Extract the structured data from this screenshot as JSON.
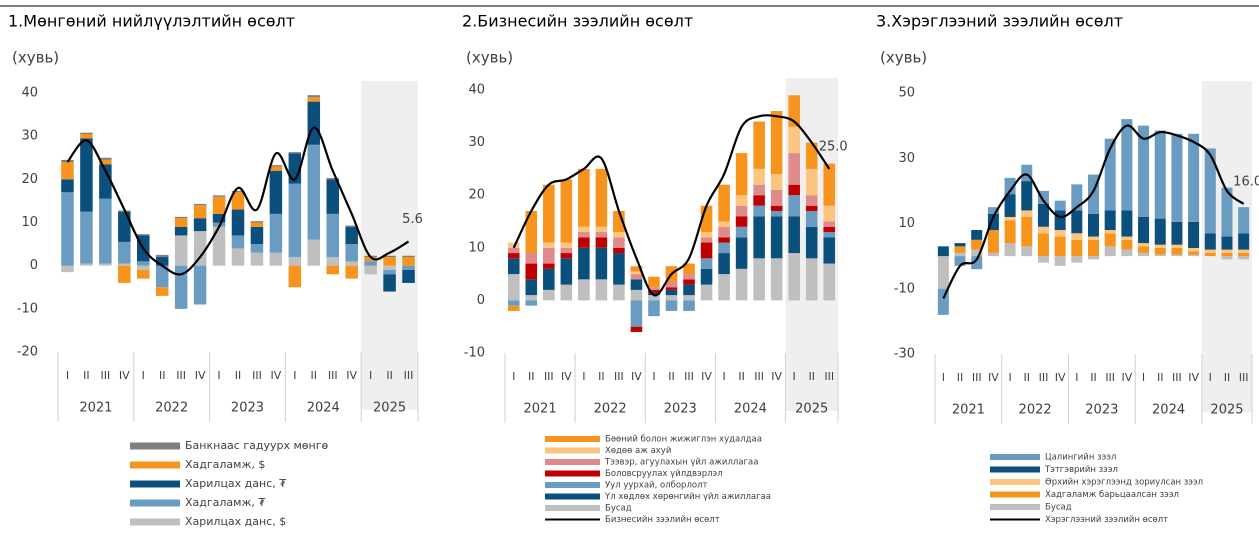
{
  "chart_data": [
    {
      "type": "bar",
      "stacked": true,
      "title": "1.Мөнгөний нийлүүлэлтийн өсөлт",
      "ylabel": "(хувь)",
      "categories": [
        "I",
        "II",
        "III",
        "IV",
        "I",
        "II",
        "III",
        "IV",
        "I",
        "II",
        "III",
        "IV",
        "I",
        "II",
        "III",
        "IV",
        "I",
        "II",
        "III"
      ],
      "years": [
        "2021",
        "2022",
        "2023",
        "2024",
        "2025"
      ],
      "ylim": [
        -20,
        40
      ],
      "yticks": [
        -20,
        -10,
        0,
        10,
        20,
        30,
        40
      ],
      "series": [
        {
          "name": "Банкнаас гадуурх мөнгө",
          "color": "#7f7f7f",
          "values": [
            0.5,
            0.3,
            0.5,
            0.3,
            0.3,
            0.5,
            0.3,
            0.3,
            0.3,
            0.3,
            0.3,
            0.3,
            0.3,
            0.5,
            0.3,
            0.3,
            0.3,
            0.3,
            0.3
          ]
        },
        {
          "name": "Хадгаламж, $",
          "color": "#f7941d",
          "values": [
            4,
            1,
            1,
            -4,
            -2,
            -2,
            2,
            3,
            4,
            4,
            1,
            1,
            -5,
            1,
            -2,
            -3,
            1,
            2,
            2
          ]
        },
        {
          "name": "Харилцах данс, ₮",
          "color": "#0b4f7d",
          "values": [
            3,
            17,
            8,
            7,
            6,
            2,
            2,
            3,
            2,
            6,
            4,
            10,
            7,
            10,
            8,
            4,
            0,
            -4,
            -3
          ]
        },
        {
          "name": "Хадгаламж, ₮",
          "color": "#6a9cc1",
          "values": [
            17,
            12,
            15,
            5,
            1,
            -5,
            -10,
            -9,
            1,
            3,
            2,
            9,
            17,
            22,
            10,
            4,
            1,
            -1,
            -1
          ]
        },
        {
          "name": "Харилцах данс, $",
          "color": "#bfbfbf",
          "values": [
            -1.5,
            0.5,
            0.5,
            0.5,
            -1,
            0,
            7,
            8,
            9,
            4,
            3,
            3,
            2,
            6,
            2,
            1,
            -2,
            -1,
            0
          ]
        }
      ],
      "line": {
        "color": "#000000",
        "values": [
          24,
          29,
          22,
          13,
          4,
          0,
          -2,
          2,
          9,
          18,
          13,
          26,
          20,
          32,
          22,
          12,
          2,
          3,
          5.6
        ],
        "value_labels": [
          null,
          null,
          null,
          null,
          null,
          null,
          null,
          null,
          null,
          null,
          null,
          null,
          null,
          null,
          null,
          null,
          null,
          null,
          "5.6"
        ]
      }
    },
    {
      "type": "bar",
      "stacked": true,
      "title": "2.Бизнесийн зээлийн өсөлт",
      "ylabel": "(хувь)",
      "categories": [
        "I",
        "II",
        "III",
        "IV",
        "I",
        "II",
        "III",
        "IV",
        "I",
        "II",
        "III",
        "IV",
        "I",
        "II",
        "III",
        "IV",
        "I",
        "II",
        "III"
      ],
      "years": [
        "2021",
        "2022",
        "2023",
        "2024",
        "2025"
      ],
      "ylim": [
        -10,
        40
      ],
      "yticks": [
        -10,
        0,
        10,
        20,
        30,
        40
      ],
      "series": [
        {
          "name": "Бөөний болон жижиглэн худалдаа",
          "color": "#f7941d",
          "values": [
            -1,
            8,
            11,
            12,
            11,
            11,
            4,
            1,
            2,
            3,
            2,
            5,
            7,
            8,
            9,
            12,
            6,
            5,
            8
          ]
        },
        {
          "name": "Хөдөө аж ахуй",
          "color": "#fcc57f",
          "values": [
            1,
            0,
            1,
            1,
            1,
            1,
            1,
            0.5,
            0,
            0,
            0,
            1,
            1,
            2,
            3,
            3,
            5,
            5,
            3
          ]
        },
        {
          "name": "Тээвэр, агуулахын үйл ажиллагаа",
          "color": "#e08b8b",
          "values": [
            1,
            2,
            3,
            1,
            1,
            1,
            2,
            1,
            0.5,
            1,
            1,
            1,
            2,
            2,
            2,
            3,
            6,
            2,
            1
          ]
        },
        {
          "name": "Боловсруулах үйлдвэрлэл",
          "color": "#c00000",
          "values": [
            1,
            3,
            1,
            1,
            2,
            2,
            1,
            -1,
            0.5,
            0.5,
            1,
            3,
            1,
            2,
            2,
            1,
            2,
            1,
            1
          ]
        },
        {
          "name": "Уул уурхай, олборлолт",
          "color": "#6a9cc1",
          "values": [
            -1,
            -1,
            0,
            0,
            0,
            0,
            0,
            -5,
            -3,
            -2,
            -2,
            2,
            2,
            2,
            2,
            1,
            4,
            3,
            1
          ]
        },
        {
          "name": "Үл хөдлөх хөрөнгийн үйл ажиллагаа",
          "color": "#0b4f7d",
          "values": [
            3,
            3,
            4,
            5,
            6,
            6,
            6,
            2,
            0.5,
            1,
            2,
            3,
            4,
            6,
            8,
            8,
            7,
            6,
            5
          ]
        },
        {
          "name": "Бусад",
          "color": "#bfbfbf",
          "values": [
            5,
            1,
            2,
            3,
            4,
            4,
            3,
            2,
            1,
            1,
            1,
            3,
            5,
            6,
            8,
            8,
            9,
            8,
            7
          ]
        }
      ],
      "line": {
        "name": "Бизнесийн зээлийн өсөлт",
        "color": "#000000",
        "values": [
          10,
          17,
          22,
          23,
          25,
          27,
          17,
          8,
          1,
          5,
          8,
          18,
          24,
          33,
          35,
          35,
          34,
          30,
          25
        ],
        "value_labels": [
          null,
          null,
          null,
          null,
          null,
          null,
          null,
          null,
          null,
          null,
          null,
          null,
          null,
          null,
          null,
          null,
          null,
          null,
          "25.0"
        ]
      }
    },
    {
      "type": "bar",
      "stacked": true,
      "title": "3.Хэрэглээний зээлийн өсөлт",
      "ylabel": "(хувь)",
      "categories": [
        "I",
        "II",
        "III",
        "IV",
        "I",
        "II",
        "III",
        "IV",
        "I",
        "II",
        "III",
        "IV",
        "I",
        "II",
        "III",
        "IV",
        "I",
        "II",
        "III"
      ],
      "years": [
        "2021",
        "2022",
        "2023",
        "2024",
        "2025"
      ],
      "ylim": [
        -30,
        50
      ],
      "yticks": [
        -30,
        -10,
        10,
        30,
        50
      ],
      "series": [
        {
          "name": "Цалингийн зээл",
          "color": "#6a9cc1",
          "values": [
            -8,
            -3,
            -4,
            2,
            5,
            5,
            4,
            3,
            8,
            12,
            22,
            28,
            28,
            27,
            27,
            27,
            26,
            15,
            8
          ]
        },
        {
          "name": "Тэтгэврийн зээл",
          "color": "#0b4f7d",
          "values": [
            3,
            1,
            3,
            5,
            7,
            9,
            7,
            6,
            7,
            7,
            6,
            8,
            8,
            8,
            7,
            8,
            5,
            4,
            5
          ]
        },
        {
          "name": "Өрхийн хэрэглээнд зориулсан зээл",
          "color": "#fcc57f",
          "values": [
            0,
            0,
            0,
            0,
            1,
            2,
            2,
            2,
            2,
            1,
            1,
            1,
            1,
            1,
            1,
            1,
            1,
            1,
            1
          ]
        },
        {
          "name": "Хадгаламж барьцаалсан зээл",
          "color": "#f7941d",
          "values": [
            0,
            2,
            3,
            7,
            7,
            9,
            7,
            6,
            5,
            5,
            4,
            3,
            2,
            2,
            2,
            1,
            1,
            1,
            1
          ]
        },
        {
          "name": "Бусад",
          "color": "#bfbfbf",
          "values": [
            -10,
            1,
            2,
            1,
            4,
            3,
            -2,
            -3,
            -2,
            -1,
            3,
            2,
            1,
            0.5,
            0.5,
            0.5,
            0,
            -1,
            -1
          ]
        }
      ],
      "line": {
        "name": "Хэрэглээний зээлийн өсөлт",
        "color": "#000000",
        "values": [
          -13,
          -3,
          -1,
          12,
          20,
          25,
          17,
          12,
          15,
          20,
          33,
          40,
          36,
          38,
          37,
          35,
          31,
          20,
          16
        ],
        "value_labels": [
          null,
          null,
          null,
          null,
          null,
          null,
          null,
          null,
          null,
          null,
          null,
          null,
          null,
          null,
          null,
          null,
          null,
          null,
          "16.0"
        ]
      }
    }
  ]
}
